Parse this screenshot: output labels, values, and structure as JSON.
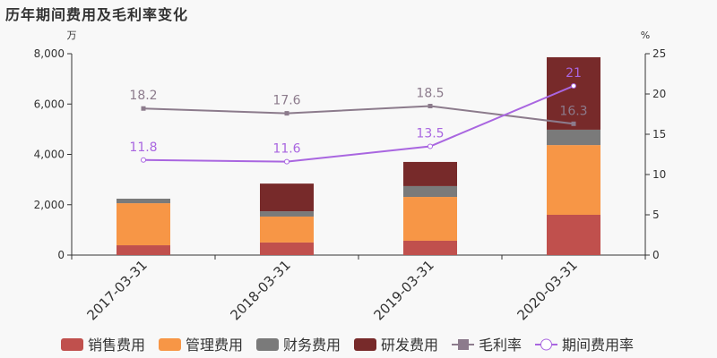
{
  "chart_data": {
    "type": "bar",
    "title": "历年期间费用及毛利率变化",
    "y_left_unit": "万",
    "y_right_unit": "%",
    "categories": [
      "2017-03-31",
      "2018-03-31",
      "2019-03-31",
      "2020-03-31"
    ],
    "ylim": [
      0,
      8000
    ],
    "y_ticks": [
      "0",
      "2,000",
      "4,000",
      "6,000",
      "8,000"
    ],
    "y2lim": [
      0,
      25
    ],
    "y2_ticks": [
      "0",
      "5",
      "10",
      "15",
      "20",
      "25"
    ],
    "stacked": true,
    "series": [
      {
        "name": "销售费用",
        "type": "bar",
        "color": "#c0504d",
        "values": [
          390,
          500,
          570,
          1600
        ]
      },
      {
        "name": "管理费用",
        "type": "bar",
        "color": "#f79646",
        "values": [
          1670,
          1030,
          1740,
          2770
        ]
      },
      {
        "name": "财务费用",
        "type": "bar",
        "color": "#7a7a7a",
        "values": [
          180,
          210,
          430,
          610
        ]
      },
      {
        "name": "研发费用",
        "type": "bar",
        "color": "#772a2a",
        "values": [
          0,
          1100,
          960,
          2880
        ]
      },
      {
        "name": "毛利率",
        "type": "line",
        "axis": "right",
        "color": "#8c7b8c",
        "marker": "square",
        "values": [
          18.2,
          17.6,
          18.5,
          16.3
        ],
        "labels": [
          "18.2",
          "17.6",
          "18.5",
          "16.3"
        ]
      },
      {
        "name": "期间费用率",
        "type": "line",
        "axis": "right",
        "color": "#a966e0",
        "marker": "circle",
        "values": [
          11.8,
          11.6,
          13.5,
          21
        ],
        "labels": [
          "11.8",
          "11.6",
          "13.5",
          "21"
        ]
      }
    ],
    "legend": "bottom"
  }
}
